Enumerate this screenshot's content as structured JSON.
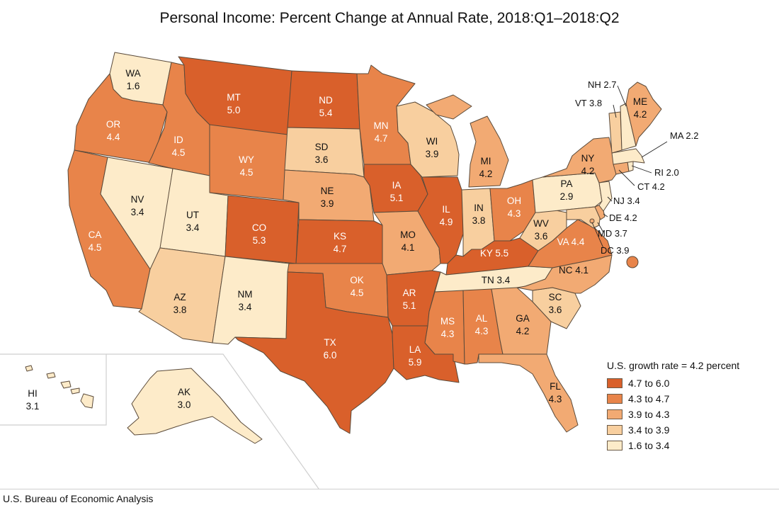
{
  "title": "Personal Income: Percent Change at Annual Rate, 2018:Q1–2018:Q2",
  "source": "U.S. Bureau of Economic Analysis",
  "legend": {
    "title": "U.S. growth rate = 4.2 percent",
    "items": [
      {
        "label": "4.7 to 6.0",
        "color": "#d9602b"
      },
      {
        "label": "4.3 to 4.7",
        "color": "#e8844a"
      },
      {
        "label": "3.9 to 4.3",
        "color": "#f2aa73"
      },
      {
        "label": "3.4 to 3.9",
        "color": "#f8cf9f"
      },
      {
        "label": "1.6 to 3.4",
        "color": "#fdebc9"
      }
    ]
  },
  "colors": {
    "c1": "#d9602b",
    "c2": "#e8844a",
    "c3": "#f2aa73",
    "c4": "#f8cf9f",
    "c5": "#fdebc9",
    "border": "#5a4a3a"
  },
  "states": {
    "WA": {
      "abbr": "WA",
      "value": "1.6"
    },
    "OR": {
      "abbr": "OR",
      "value": "4.4"
    },
    "CA": {
      "abbr": "CA",
      "value": "4.5"
    },
    "NV": {
      "abbr": "NV",
      "value": "3.4"
    },
    "ID": {
      "abbr": "ID",
      "value": "4.5"
    },
    "MT": {
      "abbr": "MT",
      "value": "5.0"
    },
    "WY": {
      "abbr": "WY",
      "value": "4.5"
    },
    "UT": {
      "abbr": "UT",
      "value": "3.4"
    },
    "AZ": {
      "abbr": "AZ",
      "value": "3.8"
    },
    "CO": {
      "abbr": "CO",
      "value": "5.3"
    },
    "NM": {
      "abbr": "NM",
      "value": "3.4"
    },
    "ND": {
      "abbr": "ND",
      "value": "5.4"
    },
    "SD": {
      "abbr": "SD",
      "value": "3.6"
    },
    "NE": {
      "abbr": "NE",
      "value": "3.9"
    },
    "KS": {
      "abbr": "KS",
      "value": "4.7"
    },
    "OK": {
      "abbr": "OK",
      "value": "4.5"
    },
    "TX": {
      "abbr": "TX",
      "value": "6.0"
    },
    "MN": {
      "abbr": "MN",
      "value": "4.7"
    },
    "IA": {
      "abbr": "IA",
      "value": "5.1"
    },
    "MO": {
      "abbr": "MO",
      "value": "4.1"
    },
    "AR": {
      "abbr": "AR",
      "value": "5.1"
    },
    "LA": {
      "abbr": "LA",
      "value": "5.9"
    },
    "WI": {
      "abbr": "WI",
      "value": "3.9"
    },
    "IL": {
      "abbr": "IL",
      "value": "4.9"
    },
    "MI": {
      "abbr": "MI",
      "value": "4.2"
    },
    "IN": {
      "abbr": "IN",
      "value": "3.8"
    },
    "OH": {
      "abbr": "OH",
      "value": "4.3"
    },
    "KY": {
      "abbr": "KY",
      "value": "5.5"
    },
    "TN": {
      "abbr": "TN",
      "value": "3.4"
    },
    "MS": {
      "abbr": "MS",
      "value": "4.3"
    },
    "AL": {
      "abbr": "AL",
      "value": "4.3"
    },
    "GA": {
      "abbr": "GA",
      "value": "4.2"
    },
    "FL": {
      "abbr": "FL",
      "value": "4.3"
    },
    "SC": {
      "abbr": "SC",
      "value": "3.6"
    },
    "NC": {
      "abbr": "NC",
      "value": "4.1"
    },
    "VA": {
      "abbr": "VA",
      "value": "4.4"
    },
    "WV": {
      "abbr": "WV",
      "value": "3.6"
    },
    "PA": {
      "abbr": "PA",
      "value": "2.9"
    },
    "NY": {
      "abbr": "NY",
      "value": "4.2"
    },
    "ME": {
      "abbr": "ME",
      "value": "4.2"
    },
    "VT": {
      "abbr": "VT",
      "value": "3.8"
    },
    "NH": {
      "abbr": "NH",
      "value": "2.7"
    },
    "MA": {
      "abbr": "MA",
      "value": "2.2"
    },
    "RI": {
      "abbr": "RI",
      "value": "2.0"
    },
    "CT": {
      "abbr": "CT",
      "value": "4.2"
    },
    "NJ": {
      "abbr": "NJ",
      "value": "3.4"
    },
    "DE": {
      "abbr": "DE",
      "value": "4.2"
    },
    "MD": {
      "abbr": "MD",
      "value": "3.7"
    },
    "DC": {
      "abbr": "DC",
      "value": "3.9"
    },
    "HI": {
      "abbr": "HI",
      "value": "3.1"
    },
    "AK": {
      "abbr": "AK",
      "value": "3.0"
    }
  }
}
